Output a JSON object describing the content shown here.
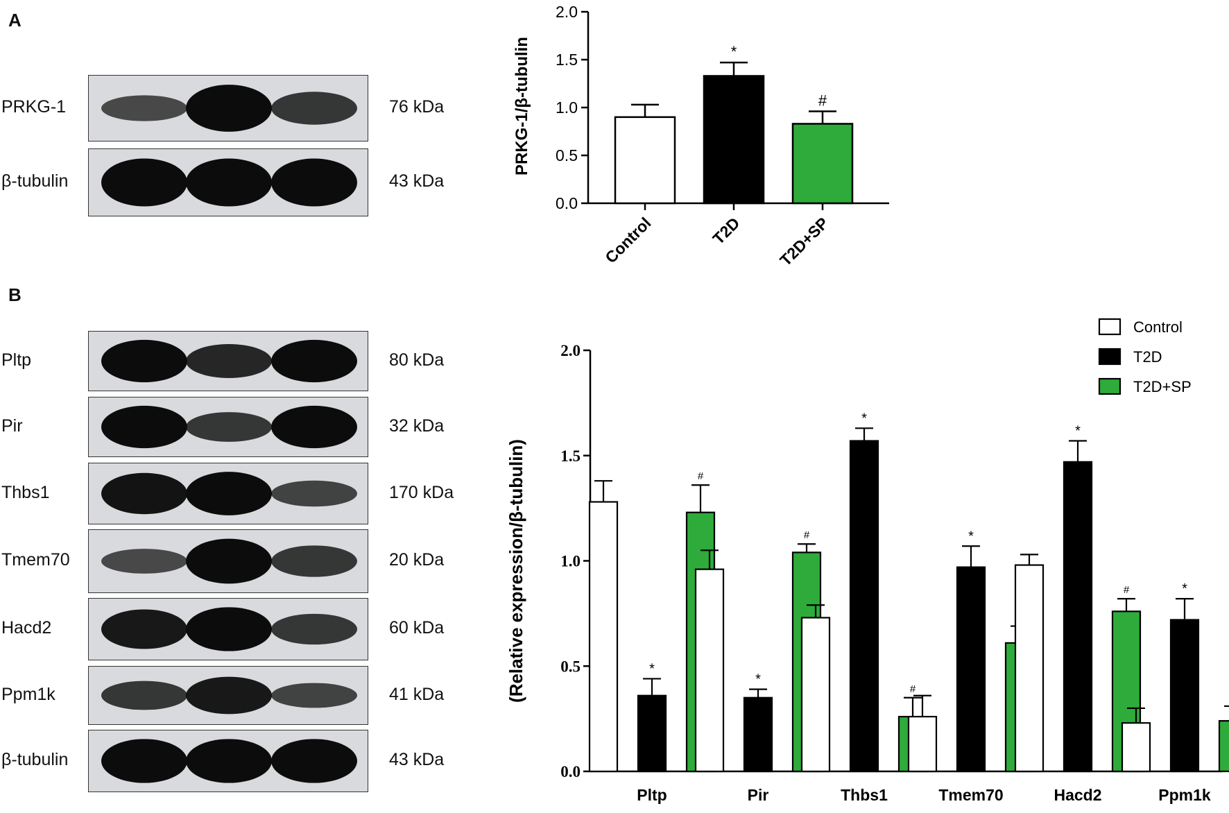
{
  "panel_a": {
    "letter": "A",
    "blots": [
      {
        "protein": "PRKG-1",
        "kda": "76 kDa",
        "intensity": [
          0.55,
          1.0,
          0.7
        ]
      },
      {
        "protein": "β-tubulin",
        "kda": "43 kDa",
        "intensity": [
          1.0,
          1.0,
          1.0
        ]
      }
    ]
  },
  "panel_b": {
    "letter": "B",
    "blots": [
      {
        "protein": "Pltp",
        "kda": "80 kDa",
        "intensity": [
          1.0,
          0.8,
          1.0
        ]
      },
      {
        "protein": "Pir",
        "kda": "32 kDa",
        "intensity": [
          1.0,
          0.7,
          1.0
        ]
      },
      {
        "protein": "Thbs1",
        "kda": "170 kDa",
        "intensity": [
          0.95,
          1.0,
          0.6
        ]
      },
      {
        "protein": "Tmem70",
        "kda": "20 kDa",
        "intensity": [
          0.55,
          1.0,
          0.7
        ]
      },
      {
        "protein": "Hacd2",
        "kda": "60 kDa",
        "intensity": [
          0.9,
          1.0,
          0.7
        ]
      },
      {
        "protein": "Ppm1k",
        "kda": "41 kDa",
        "intensity": [
          0.7,
          0.9,
          0.6
        ]
      },
      {
        "protein": "β-tubulin",
        "kda": "43 kDa",
        "intensity": [
          1.0,
          1.0,
          1.0
        ]
      }
    ]
  },
  "colors": {
    "control": "#ffffff",
    "t2d": "#000000",
    "t2d_sp": "#2eab3a"
  },
  "chart_data": [
    {
      "type": "bar",
      "title": "",
      "xlabel": "",
      "ylabel": "PRKG-1/β-tubulin",
      "ylim": [
        0,
        2.0
      ],
      "yticks": [
        "0.0",
        "0.5",
        "1.0",
        "1.5",
        "2.0"
      ],
      "categories": [
        "Control",
        "T2D",
        "T2D+SP"
      ],
      "values": [
        0.9,
        1.33,
        0.83
      ],
      "errors": [
        0.13,
        0.14,
        0.13
      ],
      "annotations": [
        "",
        "*",
        "#"
      ]
    },
    {
      "type": "bar",
      "title": "",
      "xlabel": "",
      "ylabel": "(Relative expression/β-tubulin)",
      "ylim": [
        0,
        2.0
      ],
      "yticks": [
        "0.0",
        "0.5",
        "1.0",
        "1.5",
        "2.0"
      ],
      "categories": [
        "Pltp",
        "Pir",
        "Thbs1",
        "Tmem70",
        "Hacd2",
        "Ppm1k"
      ],
      "legend_position": "top-right",
      "series": [
        {
          "name": "Control",
          "values": [
            1.28,
            0.96,
            0.73,
            0.26,
            0.98,
            0.23
          ],
          "errors": [
            0.1,
            0.09,
            0.06,
            0.1,
            0.05,
            0.07
          ],
          "annotations": [
            "",
            "",
            "",
            "",
            "",
            ""
          ]
        },
        {
          "name": "T2D",
          "values": [
            0.36,
            0.35,
            1.57,
            0.97,
            1.47,
            0.72
          ],
          "errors": [
            0.08,
            0.04,
            0.06,
            0.1,
            0.1,
            0.1
          ],
          "annotations": [
            "*",
            "*",
            "*",
            "*",
            "*",
            "*"
          ]
        },
        {
          "name": "T2D+SP",
          "values": [
            1.23,
            1.04,
            0.26,
            0.61,
            0.76,
            0.24
          ],
          "errors": [
            0.13,
            0.04,
            0.09,
            0.08,
            0.06,
            0.07
          ],
          "annotations": [
            "#",
            "#",
            "#",
            "#",
            "#",
            "#"
          ]
        }
      ]
    }
  ]
}
